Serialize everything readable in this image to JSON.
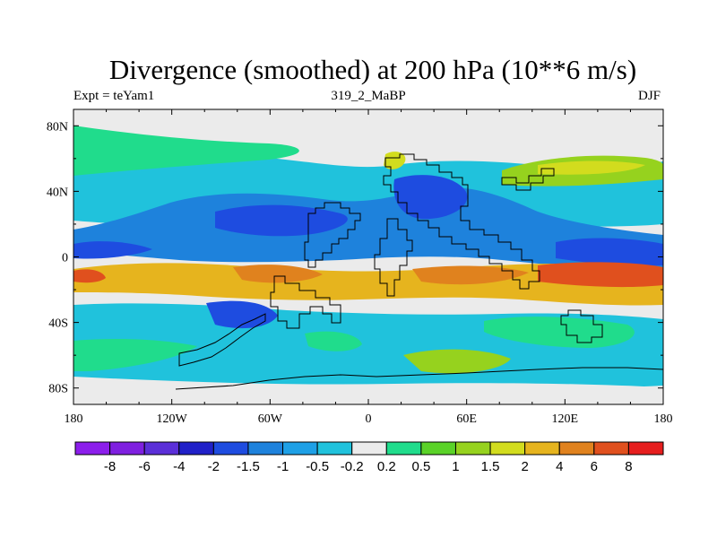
{
  "title": "Divergence (smoothed) at 200 hPa (10**6 m/s)",
  "left_subtitle": "Expt = teYam1",
  "center_subtitle": "319_2_MaBP",
  "right_subtitle": "DJF",
  "map": {
    "lon_range": [
      -180,
      180
    ],
    "lat_range": [
      -90,
      90
    ],
    "lon_ticks": [
      {
        "value": -180,
        "label": "180"
      },
      {
        "value": -120,
        "label": "120W"
      },
      {
        "value": -60,
        "label": "60W"
      },
      {
        "value": 0,
        "label": "0"
      },
      {
        "value": 60,
        "label": "60E"
      },
      {
        "value": 120,
        "label": "120E"
      },
      {
        "value": 180,
        "label": "180"
      }
    ],
    "lat_ticks": [
      {
        "value": 80,
        "label": "80N"
      },
      {
        "value": 40,
        "label": "40N"
      },
      {
        "value": 0,
        "label": "0"
      },
      {
        "value": -40,
        "label": "40S"
      },
      {
        "value": -80,
        "label": "80S"
      }
    ]
  },
  "colorbar": {
    "colors": [
      "#8c1eeb",
      "#7f20e0",
      "#5b2fd8",
      "#2020c8",
      "#1e4ce0",
      "#1e82dc",
      "#1ea0e6",
      "#20c2dc",
      "#ebebeb",
      "#20dc8c",
      "#5ad228",
      "#96d21e",
      "#d2dc1e",
      "#e6b41e",
      "#e0821e",
      "#e0501e",
      "#e61e1e"
    ],
    "labels": [
      "-8",
      "-6",
      "-4",
      "-2",
      "-1.5",
      "-1",
      "-0.5",
      "-0.2",
      "0.2",
      "0.5",
      "1",
      "1.5",
      "2",
      "4",
      "6",
      "8"
    ]
  }
}
